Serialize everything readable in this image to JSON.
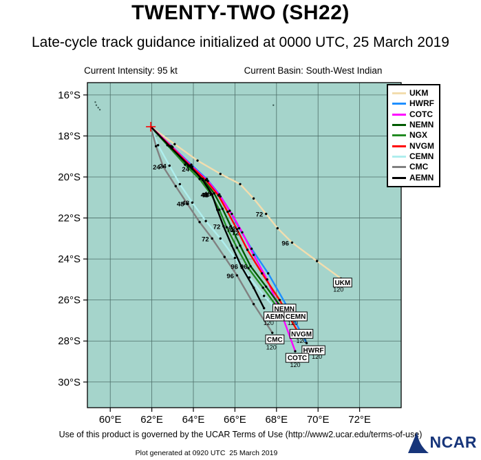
{
  "header": {
    "title": "TWENTY-TWO (SH22)",
    "subtitle": "Late-cycle track guidance initialized at 0000 UTC, 25 March 2019",
    "current_intensity": "Current Intensity: 95 kt",
    "current_basin": "Current Basin: South-West Indian"
  },
  "footer": {
    "terms": "Use of this product is governed by the UCAR Terms of Use (http://www2.ucar.edu/terms-of-use)",
    "generated": "Plot generated at 0920 UTC  25 March 2019",
    "logo_text": "NCAR"
  },
  "chart_data": {
    "type": "line",
    "kind": "tropical-cyclone-track-guidance-map",
    "storm": "TWENTY-TWO (SH22)",
    "initialized": "0000 UTC, 25 March 2019",
    "current_intensity_kt": 95,
    "basin": "South-West Indian",
    "grid": true,
    "legend_position": "top-right",
    "sea_color": "#a5d4cb",
    "grid_color": "#4d6e68",
    "start_marker_color": "#ff0000",
    "x_axis": {
      "ticks": [
        "60°E",
        "62°E",
        "64°E",
        "66°E",
        "68°E",
        "70°E",
        "72°E"
      ],
      "tick_values": [
        60,
        62,
        64,
        66,
        68,
        70,
        72
      ],
      "range": [
        58.9,
        74.0
      ],
      "unit": "degrees east"
    },
    "y_axis": {
      "ticks": [
        "16°S",
        "18°S",
        "20°S",
        "22°S",
        "24°S",
        "26°S",
        "28°S",
        "30°S"
      ],
      "tick_values": [
        16,
        18,
        20,
        22,
        24,
        26,
        28,
        30
      ],
      "range": [
        15.4,
        31.25
      ],
      "unit": "degrees south"
    },
    "start": {
      "lon": 61.95,
      "lat": 17.55
    },
    "islands": [
      [
        59.28,
        16.35
      ],
      [
        59.33,
        16.5
      ],
      [
        59.42,
        16.62
      ],
      [
        59.5,
        16.72
      ],
      [
        67.85,
        16.5
      ]
    ],
    "series": [
      {
        "name": "UKM",
        "color": "#f2ddae",
        "points": [
          [
            61.95,
            17.55
          ],
          [
            63.1,
            18.4
          ],
          [
            64.2,
            19.2
          ],
          [
            65.3,
            19.85
          ],
          [
            66.25,
            20.35
          ],
          [
            66.9,
            21.05
          ],
          [
            67.5,
            21.8
          ],
          [
            68.05,
            22.5
          ],
          [
            68.75,
            23.2
          ],
          [
            69.95,
            24.1
          ],
          [
            71.1,
            24.95
          ]
        ],
        "hour_labels": [
          {
            "idx": 6,
            "text": "72"
          },
          {
            "idx": 8,
            "text": "96"
          }
        ]
      },
      {
        "name": "HWRF",
        "color": "#1e8fff",
        "points": [
          [
            61.95,
            17.55
          ],
          [
            62.95,
            18.5
          ],
          [
            63.9,
            19.4
          ],
          [
            64.65,
            20.1
          ],
          [
            65.25,
            20.85
          ],
          [
            65.75,
            21.65
          ],
          [
            66.2,
            22.5
          ],
          [
            66.8,
            23.5
          ],
          [
            67.6,
            24.7
          ],
          [
            68.5,
            26.3
          ],
          [
            69.45,
            28.1
          ]
        ],
        "hour_labels": [
          {
            "idx": 6,
            "text": "72"
          }
        ]
      },
      {
        "name": "COTC",
        "color": "#ff00ff",
        "points": [
          [
            61.95,
            17.55
          ],
          [
            63.0,
            18.55
          ],
          [
            63.95,
            19.5
          ],
          [
            64.7,
            20.2
          ],
          [
            65.3,
            20.95
          ],
          [
            65.85,
            21.8
          ],
          [
            66.35,
            22.7
          ],
          [
            66.9,
            23.8
          ],
          [
            67.55,
            25.0
          ],
          [
            68.25,
            26.7
          ],
          [
            68.9,
            28.5
          ]
        ],
        "hour_labels": [
          {
            "idx": 6,
            "text": "72"
          }
        ]
      },
      {
        "name": "NEMN",
        "color": "#005a00",
        "points": [
          [
            61.95,
            17.55
          ],
          [
            62.85,
            18.5
          ],
          [
            63.75,
            19.45
          ],
          [
            64.45,
            20.1
          ],
          [
            65.0,
            20.8
          ],
          [
            65.4,
            21.55
          ],
          [
            65.8,
            22.4
          ],
          [
            66.25,
            23.35
          ],
          [
            66.75,
            24.35
          ],
          [
            67.5,
            25.35
          ],
          [
            68.15,
            26.25
          ]
        ],
        "hour_labels": [
          {
            "idx": 4,
            "text": "48"
          },
          {
            "idx": 8,
            "text": "96"
          }
        ]
      },
      {
        "name": "NGX",
        "color": "#228b22",
        "points": [
          [
            61.95,
            17.55
          ],
          [
            62.75,
            18.45
          ],
          [
            63.6,
            19.4
          ],
          [
            64.3,
            20.1
          ],
          [
            64.85,
            20.85
          ],
          [
            65.25,
            21.6
          ],
          [
            65.6,
            22.45
          ],
          [
            66.1,
            23.45
          ],
          [
            66.65,
            24.45
          ],
          [
            67.35,
            25.4
          ],
          [
            68.0,
            26.3
          ]
        ],
        "hour_labels": [
          {
            "idx": 4,
            "text": "48"
          }
        ]
      },
      {
        "name": "NVGM",
        "color": "#ff0000",
        "points": [
          [
            61.95,
            17.55
          ],
          [
            62.9,
            18.5
          ],
          [
            63.85,
            19.45
          ],
          [
            64.6,
            20.15
          ],
          [
            65.2,
            20.9
          ],
          [
            65.65,
            21.7
          ],
          [
            66.1,
            22.55
          ],
          [
            66.6,
            23.55
          ],
          [
            67.3,
            24.7
          ],
          [
            68.15,
            26.0
          ],
          [
            69.0,
            27.5
          ]
        ],
        "hour_labels": [
          {
            "idx": 6,
            "text": "72"
          }
        ]
      },
      {
        "name": "CEMN",
        "color": "#afeeee",
        "points": [
          [
            61.95,
            17.55
          ],
          [
            62.3,
            18.45
          ],
          [
            62.85,
            19.45
          ],
          [
            63.35,
            20.35
          ],
          [
            63.95,
            21.25
          ],
          [
            64.6,
            22.15
          ],
          [
            65.3,
            23.0
          ],
          [
            66.0,
            23.95
          ],
          [
            66.7,
            24.9
          ],
          [
            67.4,
            25.8
          ],
          [
            68.0,
            26.45
          ]
        ],
        "hour_labels": [
          {
            "idx": 2,
            "text": "24"
          },
          {
            "idx": 4,
            "text": "48"
          }
        ]
      },
      {
        "name": "CMC",
        "color": "#808080",
        "points": [
          [
            61.95,
            17.55
          ],
          [
            62.2,
            18.5
          ],
          [
            62.55,
            19.5
          ],
          [
            63.15,
            20.45
          ],
          [
            63.7,
            21.3
          ],
          [
            64.3,
            22.2
          ],
          [
            64.9,
            23.0
          ],
          [
            65.5,
            23.9
          ],
          [
            66.1,
            24.8
          ],
          [
            66.9,
            26.2
          ],
          [
            67.8,
            27.6
          ]
        ],
        "hour_labels": [
          {
            "idx": 2,
            "text": "24"
          },
          {
            "idx": 4,
            "text": "48"
          },
          {
            "idx": 6,
            "text": "72"
          },
          {
            "idx": 8,
            "text": "96"
          }
        ]
      },
      {
        "name": "AEMN",
        "color": "#000000",
        "points": [
          [
            61.95,
            17.55
          ],
          [
            62.95,
            18.6
          ],
          [
            63.95,
            19.6
          ],
          [
            64.45,
            20.15
          ],
          [
            64.9,
            20.85
          ],
          [
            65.15,
            21.6
          ],
          [
            65.45,
            22.4
          ],
          [
            65.85,
            23.35
          ],
          [
            66.3,
            24.35
          ],
          [
            66.9,
            25.4
          ],
          [
            67.4,
            26.4
          ]
        ],
        "hour_labels": [
          {
            "idx": 2,
            "text": "24"
          },
          {
            "idx": 4,
            "text": "48"
          },
          {
            "idx": 6,
            "text": "72"
          },
          {
            "idx": 8,
            "text": "96"
          }
        ]
      }
    ],
    "end_boxes": [
      {
        "name": "NEMN",
        "lon": 68.38,
        "lat": 26.42
      },
      {
        "name": "AEMN",
        "lon": 67.95,
        "lat": 26.8,
        "t120": [
          67.62,
          27.22
        ]
      },
      {
        "name": "CEMN",
        "lon": 68.92,
        "lat": 26.8,
        "t120": [
          68.78,
          27.22
        ]
      },
      {
        "name": "NVGM",
        "lon": 69.2,
        "lat": 27.65,
        "t120": [
          69.2,
          28.1
        ]
      },
      {
        "name": "CMC",
        "lon": 67.92,
        "lat": 27.92,
        "t120": [
          67.75,
          28.42
        ]
      },
      {
        "name": "HWRF",
        "lon": 69.78,
        "lat": 28.45,
        "t120": [
          69.95,
          28.87
        ]
      },
      {
        "name": "COTC",
        "lon": 69.0,
        "lat": 28.82,
        "t120": [
          68.9,
          29.27
        ]
      },
      {
        "name": "UKM",
        "lon": 71.18,
        "lat": 25.15,
        "t120": [
          70.98,
          25.6
        ]
      }
    ]
  }
}
